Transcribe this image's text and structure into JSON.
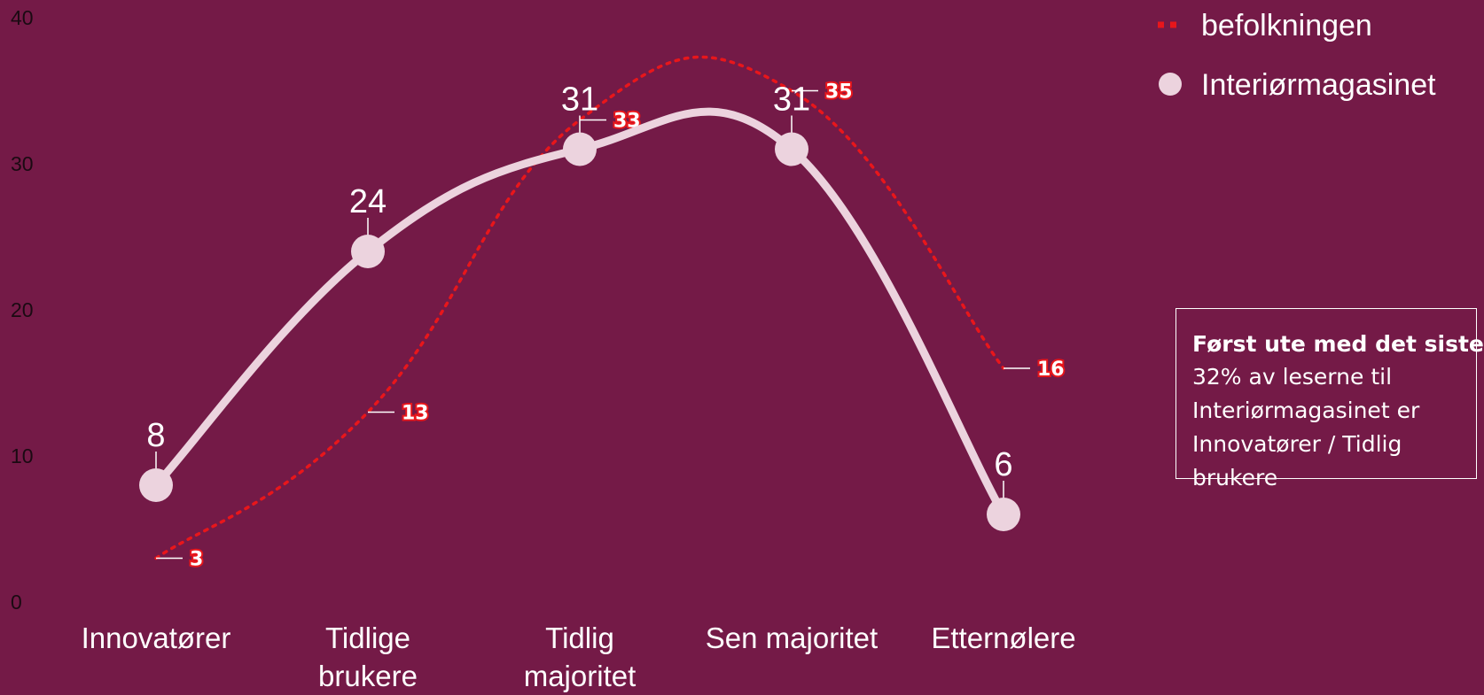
{
  "colors": {
    "background": "#741a47",
    "main_series": "#ecd3de",
    "population_series": "#e8161b",
    "label_text": "#ffffff",
    "axis_text": "#1a0a12"
  },
  "chart_data": {
    "type": "line",
    "categories": [
      "Innovatører",
      "Tidlige brukere",
      "Tidlig majoritet",
      "Sen majoritet",
      "Etternølere"
    ],
    "category_lines": [
      [
        "Innovatører"
      ],
      [
        "Tidlige",
        "brukere"
      ],
      [
        "Tidlig",
        "majoritet"
      ],
      [
        "Sen majoritet"
      ],
      [
        "Etternølere"
      ]
    ],
    "series": [
      {
        "name": "befolkningen",
        "style": "dotted",
        "values": [
          3,
          13,
          33,
          35,
          16
        ],
        "value_labels": [
          "3",
          "13",
          "33",
          "35",
          "16"
        ]
      },
      {
        "name": "Interiørmagasinet",
        "style": "solid-markers",
        "values": [
          8,
          24,
          31,
          31,
          6
        ],
        "value_labels": [
          "8",
          "24",
          "31",
          "31",
          "6"
        ]
      }
    ],
    "ylim": [
      0,
      40
    ],
    "yticks": [
      0,
      10,
      20,
      30,
      40
    ],
    "ytick_labels": [
      "0",
      "10",
      "20",
      "30",
      "40"
    ],
    "title": "",
    "xlabel": "",
    "ylabel": "",
    "grid": false,
    "legend_position": "top-right"
  },
  "legend": {
    "items": [
      {
        "label": "befolkningen",
        "marker": "dotted-line"
      },
      {
        "label": "Interiørmagasinet",
        "marker": "circle"
      }
    ]
  },
  "callout": {
    "title": "Først ute med det siste",
    "body": "32% av leserne til Interiørmagasinet er Innovatører / Tidlig brukere"
  }
}
